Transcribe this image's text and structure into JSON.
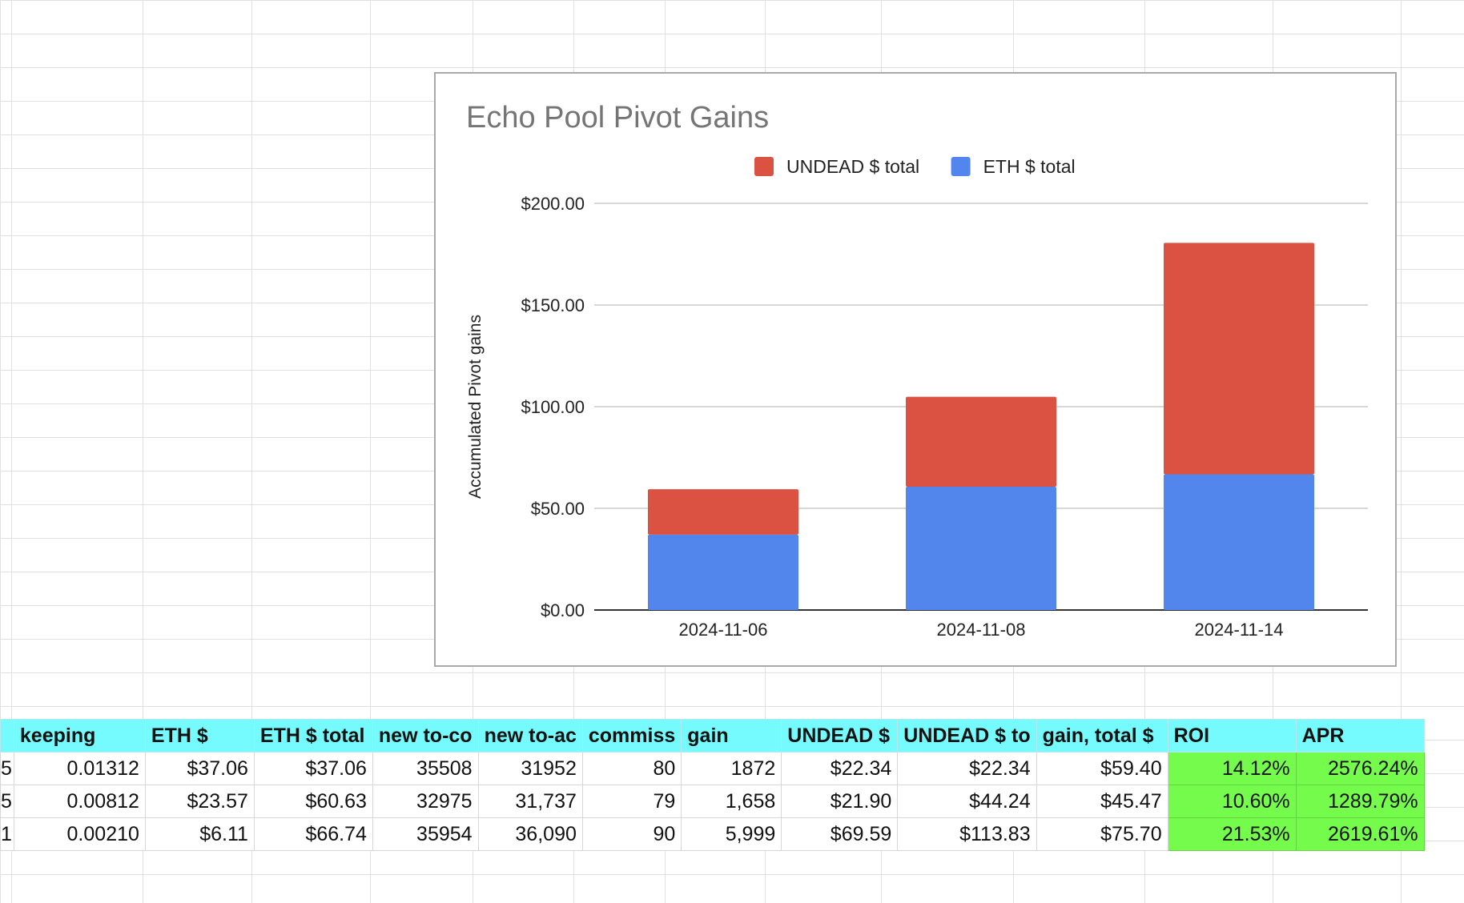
{
  "colors": {
    "undead": "#db5142",
    "eth": "#5386ec",
    "header_bg": "#75fbfd",
    "highlight_green": "#75fb4c"
  },
  "chart_data": {
    "type": "bar",
    "stacked": true,
    "title": "Echo Pool Pivot Gains",
    "xlabel": "",
    "ylabel": "Accumulated Pivot gains",
    "categories": [
      "2024-11-06",
      "2024-11-08",
      "2024-11-14"
    ],
    "series": [
      {
        "name": "ETH $ total",
        "values": [
          37.06,
          60.63,
          66.74
        ],
        "color": "#5386ec"
      },
      {
        "name": "UNDEAD $ total",
        "values": [
          22.34,
          44.24,
          113.83
        ],
        "color": "#db5142"
      }
    ],
    "legend_order": [
      "UNDEAD $ total",
      "ETH $ total"
    ],
    "legend_position": "top",
    "ylim": [
      0,
      200
    ],
    "yticks": [
      "$0.00",
      "$50.00",
      "$100.00",
      "$150.00",
      "$200.00"
    ],
    "grid": true
  },
  "table": {
    "headers": [
      "",
      "keeping",
      "ETH $",
      "ETH $ total",
      "new to-co",
      "new to-ac",
      "commiss",
      "gain",
      "UNDEAD $",
      "UNDEAD $ to",
      "gain, total $",
      "ROI",
      "APR"
    ],
    "rows": [
      [
        "5",
        "0.01312",
        "$37.06",
        "$37.06",
        "35508",
        "31952",
        "80",
        "1872",
        "$22.34",
        "$22.34",
        "$59.40",
        "14.12%",
        "2576.24%"
      ],
      [
        "5",
        "0.00812",
        "$23.57",
        "$60.63",
        "32975",
        "31,737",
        "79",
        "1,658",
        "$21.90",
        "$44.24",
        "$45.47",
        "10.60%",
        "1289.79%"
      ],
      [
        "1",
        "0.00210",
        "$6.11",
        "$66.74",
        "35954",
        "36,090",
        "90",
        "5,999",
        "$69.59",
        "$113.83",
        "$75.70",
        "21.53%",
        "2619.61%"
      ]
    ]
  }
}
